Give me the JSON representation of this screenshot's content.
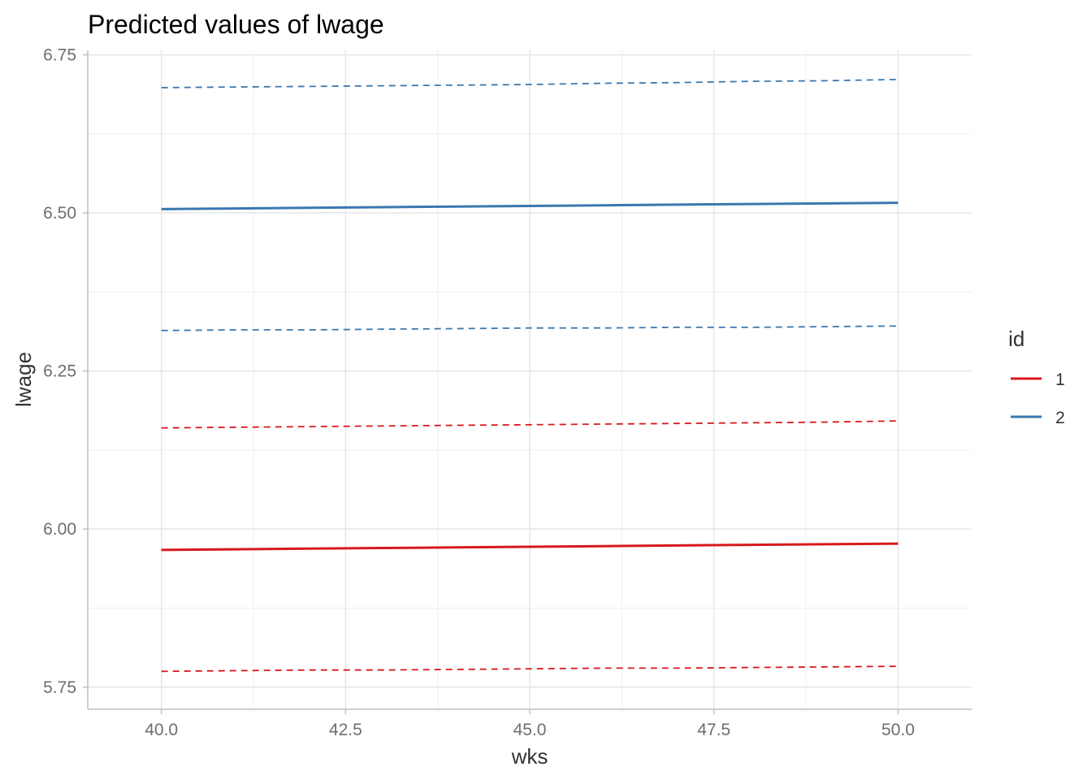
{
  "chart_data": {
    "type": "line",
    "title": "Predicted values of lwage",
    "xlabel": "wks",
    "ylabel": "lwage",
    "xlim": [
      39.0,
      51.0
    ],
    "ylim": [
      5.715,
      6.757
    ],
    "x_ticks": [
      40.0,
      42.5,
      45.0,
      47.5,
      50.0
    ],
    "x_tick_labels": [
      "40.0",
      "42.5",
      "45.0",
      "47.5",
      "50.0"
    ],
    "y_ticks": [
      5.75,
      6.0,
      6.25,
      6.5,
      6.75
    ],
    "y_tick_labels": [
      "5.75",
      "6.00",
      "6.25",
      "6.50",
      "6.75"
    ],
    "grid": true,
    "legend": {
      "title": "id",
      "position": "right",
      "entries": [
        "1",
        "2"
      ]
    },
    "x": [
      40,
      41,
      42,
      43,
      44,
      45,
      46,
      47,
      48,
      49,
      50
    ],
    "series": [
      {
        "name": "1",
        "color": "#d7191c",
        "values": [
          5.967,
          5.968,
          5.969,
          5.97,
          5.971,
          5.972,
          5.973,
          5.974,
          5.975,
          5.976,
          5.977
        ],
        "lower": [
          5.775,
          5.776,
          5.777,
          5.777,
          5.778,
          5.779,
          5.78,
          5.78,
          5.781,
          5.782,
          5.783
        ],
        "upper": [
          6.16,
          6.161,
          6.162,
          6.163,
          6.164,
          6.165,
          6.166,
          6.167,
          6.168,
          6.169,
          6.171
        ]
      },
      {
        "name": "2",
        "color": "#3a78b0",
        "values": [
          6.506,
          6.507,
          6.508,
          6.509,
          6.51,
          6.511,
          6.512,
          6.513,
          6.514,
          6.515,
          6.516
        ],
        "lower": [
          6.314,
          6.315,
          6.315,
          6.316,
          6.317,
          6.318,
          6.318,
          6.319,
          6.319,
          6.32,
          6.321
        ],
        "upper": [
          6.698,
          6.699,
          6.7,
          6.701,
          6.702,
          6.703,
          6.705,
          6.706,
          6.708,
          6.709,
          6.711
        ]
      }
    ]
  }
}
